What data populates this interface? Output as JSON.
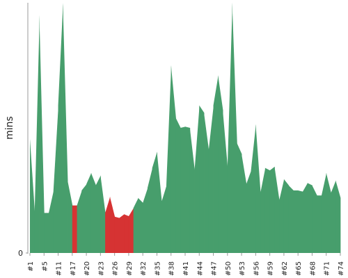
{
  "chart_data": {
    "type": "area",
    "ylabel": "mins",
    "ylim": [
      0,
      100
    ],
    "yticks": [
      0
    ],
    "categories": [
      "#1",
      null,
      null,
      "#5",
      null,
      null,
      "#11",
      null,
      null,
      "#17",
      null,
      null,
      "#20",
      null,
      null,
      "#23",
      null,
      null,
      "#26",
      null,
      null,
      "#29",
      null,
      null,
      "#32",
      null,
      null,
      "#35",
      null,
      null,
      "#38",
      null,
      null,
      "#41",
      null,
      null,
      "#44",
      null,
      null,
      "#47",
      null,
      null,
      "#50",
      null,
      null,
      "#53",
      null,
      null,
      "#56",
      null,
      null,
      "#59",
      null,
      null,
      "#62",
      null,
      null,
      "#65",
      null,
      null,
      "#68",
      null,
      null,
      "#71",
      null,
      null,
      "#74"
    ],
    "values": [
      45.6,
      16,
      95,
      16,
      16,
      25,
      59,
      100,
      29,
      19,
      19,
      25,
      27.5,
      32,
      27,
      31,
      16,
      22.5,
      14.5,
      14,
      15.5,
      14.7,
      18,
      22,
      20,
      26,
      34,
      40.5,
      20.5,
      27,
      75,
      54,
      50,
      50.5,
      50,
      33,
      59,
      56,
      41,
      59,
      71,
      57,
      34,
      100,
      44,
      39.5,
      27.5,
      33,
      51.5,
      24,
      34,
      33,
      34.5,
      21,
      29.5,
      27,
      25,
      25,
      24.5,
      28,
      27,
      23,
      23,
      32,
      24,
      29,
      22
    ],
    "colors": [
      "#479e6c",
      "#479e6c",
      "#479e6c",
      "#479e6c",
      "#479e6c",
      "#479e6c",
      "#479e6c",
      "#479e6c",
      "#479e6c",
      "#d63333",
      "#d63333",
      "#479e6c",
      "#479e6c",
      "#479e6c",
      "#479e6c",
      "#479e6c",
      "#d63333",
      "#d63333",
      "#d63333",
      "#d63333",
      "#d63333",
      "#d63333",
      "#d63333",
      "#479e6c",
      "#479e6c",
      "#479e6c",
      "#479e6c",
      "#479e6c",
      "#479e6c",
      "#479e6c",
      "#479e6c",
      "#479e6c",
      "#479e6c",
      "#479e6c",
      "#479e6c",
      "#479e6c",
      "#479e6c",
      "#479e6c",
      "#479e6c",
      "#479e6c",
      "#479e6c",
      "#479e6c",
      "#479e6c",
      "#479e6c",
      "#479e6c",
      "#479e6c",
      "#479e6c",
      "#479e6c",
      "#479e6c",
      "#479e6c",
      "#479e6c",
      "#479e6c",
      "#479e6c",
      "#479e6c",
      "#479e6c",
      "#479e6c",
      "#479e6c",
      "#479e6c",
      "#479e6c",
      "#479e6c",
      "#479e6c",
      "#479e6c",
      "#479e6c",
      "#479e6c",
      "#479e6c",
      "#479e6c",
      "#479e6c"
    ]
  }
}
